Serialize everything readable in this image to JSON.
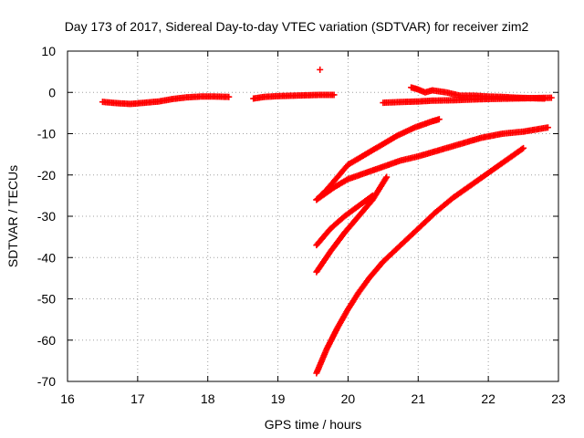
{
  "chart_data": {
    "type": "scatter",
    "title": "Day 173 of 2017, Sidereal Day-to-day VTEC variation (SDTVAR) for receiver zim2",
    "xlabel": "GPS time / hours",
    "ylabel": "SDTVAR / TECUs",
    "xlim": [
      16,
      23
    ],
    "ylim": [
      -70,
      10
    ],
    "x_ticks": [
      16,
      17,
      18,
      19,
      20,
      21,
      22,
      23
    ],
    "y_ticks": [
      10,
      0,
      -10,
      -20,
      -30,
      -40,
      -50,
      -60,
      -70
    ],
    "grid": true,
    "marker": "plus",
    "color": "#ff0000",
    "series": [
      {
        "x": [
          16.5,
          16.7,
          16.9,
          17.1,
          17.3,
          17.5,
          17.7,
          17.9,
          18.1,
          18.3
        ],
        "y": [
          -2.3,
          -2.6,
          -2.8,
          -2.5,
          -2.2,
          -1.6,
          -1.2,
          -1.0,
          -1.0,
          -1.1
        ]
      },
      {
        "x": [
          18.65,
          18.8,
          19.0,
          19.2,
          19.4,
          19.6,
          19.8
        ],
        "y": [
          -1.5,
          -1.1,
          -0.9,
          -0.8,
          -0.7,
          -0.6,
          -0.6
        ]
      },
      {
        "x": [
          19.6
        ],
        "y": [
          5.5
        ]
      },
      {
        "x": [
          20.5,
          20.8,
          21.0,
          21.2,
          21.5,
          21.8,
          22.0,
          22.3,
          22.6,
          22.9
        ],
        "y": [
          -2.5,
          -2.3,
          -2.2,
          -2.0,
          -1.9,
          -1.7,
          -1.6,
          -1.5,
          -1.4,
          -1.3
        ]
      },
      {
        "x": [
          20.9,
          21.0,
          21.1,
          21.2,
          21.4,
          21.6,
          21.8,
          22.0,
          22.2,
          22.4,
          22.6,
          22.8
        ],
        "y": [
          1.2,
          0.7,
          0.0,
          0.5,
          0.0,
          -0.8,
          -0.8,
          -1.0,
          -1.1,
          -1.3,
          -1.4,
          -1.5
        ]
      },
      {
        "x": [
          19.55,
          19.7,
          19.85,
          20.0,
          20.2,
          20.45,
          20.7,
          20.95,
          21.2,
          21.3
        ],
        "y": [
          -26,
          -23.5,
          -20.5,
          -17.5,
          -15.5,
          -13,
          -10.5,
          -8.5,
          -7,
          -6.5
        ]
      },
      {
        "x": [
          19.55,
          19.8,
          20.0,
          20.25,
          20.5,
          20.75,
          21.0,
          21.3,
          21.6,
          21.9,
          22.2,
          22.5,
          22.85
        ],
        "y": [
          -26,
          -23,
          -21,
          -19.5,
          -18,
          -16.5,
          -15.5,
          -14,
          -12.5,
          -11,
          -10,
          -9.5,
          -8.5
        ]
      },
      {
        "x": [
          19.55,
          19.75,
          19.95,
          20.15,
          20.35
        ],
        "y": [
          -37,
          -33,
          -30,
          -27.5,
          -25
        ]
      },
      {
        "x": [
          19.55,
          19.75,
          19.95,
          20.15,
          20.35,
          20.55
        ],
        "y": [
          -43.5,
          -38.5,
          -34,
          -30,
          -26,
          -20.5
        ]
      },
      {
        "x": [
          19.55,
          19.7,
          19.85,
          20.0,
          20.15,
          20.3,
          20.5,
          20.75,
          21.0,
          21.25,
          21.5,
          21.75,
          22.0,
          22.25,
          22.5
        ],
        "y": [
          -68,
          -62,
          -57,
          -52.5,
          -48.5,
          -45,
          -41,
          -37,
          -33,
          -29,
          -25.5,
          -22.5,
          -19.5,
          -16.5,
          -13.5
        ]
      }
    ]
  }
}
